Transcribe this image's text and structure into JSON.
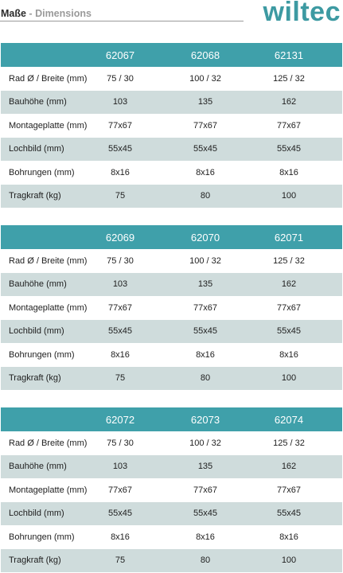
{
  "header": {
    "title_main": "Maße",
    "title_sep": " - ",
    "title_sub": "Dimensions",
    "brand": "wiltec"
  },
  "tables": [
    {
      "models": [
        "62067",
        "62068",
        "62131"
      ],
      "rows": [
        {
          "label": "Rad Ø / Breite (mm)",
          "values": [
            "75 / 30",
            "100 / 32",
            "125 / 32"
          ]
        },
        {
          "label": "Bauhöhe (mm)",
          "values": [
            "103",
            "135",
            "162"
          ]
        },
        {
          "label": "Montageplatte (mm)",
          "values": [
            "77x67",
            "77x67",
            "77x67"
          ]
        },
        {
          "label": "Lochbild (mm)",
          "values": [
            "55x45",
            "55x45",
            "55x45"
          ]
        },
        {
          "label": "Bohrungen (mm)",
          "values": [
            "8x16",
            "8x16",
            "8x16"
          ]
        },
        {
          "label": "Tragkraft (kg)",
          "values": [
            "75",
            "80",
            "100"
          ]
        }
      ]
    },
    {
      "models": [
        "62069",
        "62070",
        "62071"
      ],
      "rows": [
        {
          "label": "Rad Ø / Breite (mm)",
          "values": [
            "75 / 30",
            "100 / 32",
            "125 / 32"
          ]
        },
        {
          "label": "Bauhöhe (mm)",
          "values": [
            "103",
            "135",
            "162"
          ]
        },
        {
          "label": "Montageplatte (mm)",
          "values": [
            "77x67",
            "77x67",
            "77x67"
          ]
        },
        {
          "label": "Lochbild (mm)",
          "values": [
            "55x45",
            "55x45",
            "55x45"
          ]
        },
        {
          "label": "Bohrungen (mm)",
          "values": [
            "8x16",
            "8x16",
            "8x16"
          ]
        },
        {
          "label": "Tragkraft (kg)",
          "values": [
            "75",
            "80",
            "100"
          ]
        }
      ]
    },
    {
      "models": [
        "62072",
        "62073",
        "62074"
      ],
      "rows": [
        {
          "label": "Rad Ø / Breite (mm)",
          "values": [
            "75 / 30",
            "100 / 32",
            "125 / 32"
          ]
        },
        {
          "label": "Bauhöhe (mm)",
          "values": [
            "103",
            "135",
            "162"
          ]
        },
        {
          "label": "Montageplatte (mm)",
          "values": [
            "77x67",
            "77x67",
            "77x67"
          ]
        },
        {
          "label": "Lochbild (mm)",
          "values": [
            "55x45",
            "55x45",
            "55x45"
          ]
        },
        {
          "label": "Bohrungen (mm)",
          "values": [
            "8x16",
            "8x16",
            "8x16"
          ]
        },
        {
          "label": "Tragkraft (kg)",
          "values": [
            "75",
            "80",
            "100"
          ]
        }
      ]
    }
  ],
  "colors": {
    "accent": "#3fa0aa",
    "brand": "#3d9aa2",
    "row_shade": "#cfdcdc",
    "subtitle": "#9a9a9a"
  }
}
